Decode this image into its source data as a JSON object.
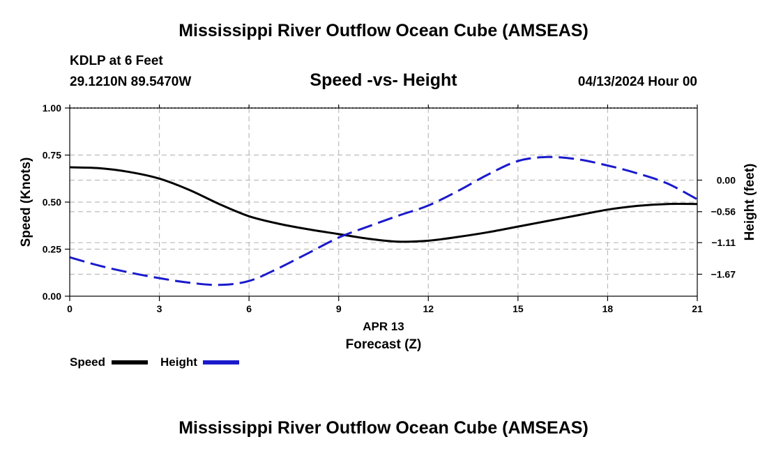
{
  "page": {
    "title_top": "Mississippi River Outflow Ocean Cube (AMSEAS)",
    "title_bottom": "Mississippi River Outflow Ocean Cube (AMSEAS)",
    "station": "KDLP at 6 Feet",
    "coords": "29.1210N  89.5470W",
    "plot_title": "Speed -vs- Height",
    "datetime": "04/13/2024 Hour 00"
  },
  "legend": {
    "speed_label": "Speed",
    "height_label": "Height"
  },
  "colors": {
    "speed": "#000000",
    "height": "#1a1acc",
    "grid": "#bbbbbb"
  },
  "chart_data": {
    "type": "line",
    "title": "Speed -vs- Height",
    "xlabel": "Forecast (Z)",
    "xlabel_date": "APR 13",
    "ylabel_left": "Speed (Knots)",
    "ylabel_right": "Height (feet)",
    "xlim": [
      0,
      21
    ],
    "ylim_left": [
      0,
      1
    ],
    "ylim_right": [
      -2.06,
      1.28
    ],
    "x_ticks": [
      0,
      3,
      6,
      9,
      12,
      15,
      18,
      21
    ],
    "x_tick_labels": [
      "0",
      "3",
      "6",
      "9",
      "12",
      "15",
      "18",
      "21"
    ],
    "y_left_ticks": [
      0,
      0.25,
      0.5,
      0.75,
      1.0
    ],
    "y_left_tick_labels": [
      "0.00",
      "0.25",
      "0.50",
      "0.75",
      "1.00"
    ],
    "y_right_ticks": [
      0.0,
      -0.56,
      -1.11,
      -1.67
    ],
    "y_right_tick_labels": [
      "0.00",
      "−0.56",
      "−1.11",
      "−1.67"
    ],
    "grid": true,
    "series": [
      {
        "name": "Speed",
        "axis": "left",
        "style": "solid",
        "x": [
          0,
          1,
          2,
          3,
          4,
          5,
          6,
          7,
          8,
          9,
          10,
          11,
          12,
          13,
          14,
          15,
          16,
          17,
          18,
          19,
          20,
          21
        ],
        "values": [
          0.685,
          0.68,
          0.66,
          0.625,
          0.565,
          0.49,
          0.425,
          0.385,
          0.355,
          0.33,
          0.305,
          0.29,
          0.295,
          0.315,
          0.34,
          0.37,
          0.4,
          0.43,
          0.46,
          0.48,
          0.49,
          0.49
        ]
      },
      {
        "name": "Height",
        "axis": "right",
        "style": "dashed",
        "x": [
          0,
          1,
          2,
          3,
          4,
          5,
          6,
          7,
          8,
          9,
          10,
          11,
          12,
          13,
          14,
          15,
          16,
          17,
          18,
          19,
          20,
          21
        ],
        "values": [
          -1.37,
          -1.52,
          -1.64,
          -1.74,
          -1.82,
          -1.86,
          -1.79,
          -1.56,
          -1.29,
          -1.02,
          -0.82,
          -0.63,
          -0.45,
          -0.19,
          0.1,
          0.34,
          0.41,
          0.37,
          0.26,
          0.12,
          -0.06,
          -0.34
        ]
      }
    ]
  }
}
